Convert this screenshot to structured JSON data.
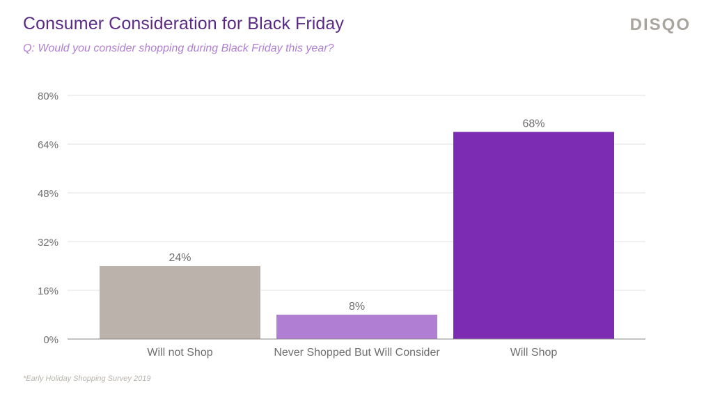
{
  "header": {
    "title": "Consumer Consideration for Black Friday",
    "subtitle": "Q: Would you consider shopping during Black Friday this year?",
    "logo_text": "DISQO"
  },
  "footnote": "*Early Holiday Shopping Survey 2019",
  "colors": {
    "title": "#5b2a86",
    "subtitle": "#b07fd3",
    "gridline": "#e2e2e2",
    "axis": "#888888",
    "tick_text": "#6f6f6f"
  },
  "chart_data": {
    "type": "bar",
    "title": "Consumer Consideration for Black Friday",
    "categories": [
      "Will not Shop",
      "Never Shopped But Will Consider",
      "Will Shop"
    ],
    "values": [
      24,
      8,
      68
    ],
    "value_labels": [
      "24%",
      "8%",
      "68%"
    ],
    "bar_colors": [
      "#bab2ab",
      "#b07fd3",
      "#7b2cb3"
    ],
    "ylim": [
      0,
      80
    ],
    "yticks": [
      0,
      16,
      32,
      48,
      64,
      80
    ],
    "ytick_labels": [
      "0%",
      "16%",
      "32%",
      "48%",
      "64%",
      "80%"
    ],
    "xlabel": "",
    "ylabel": "",
    "grid": true,
    "legend": "none"
  }
}
